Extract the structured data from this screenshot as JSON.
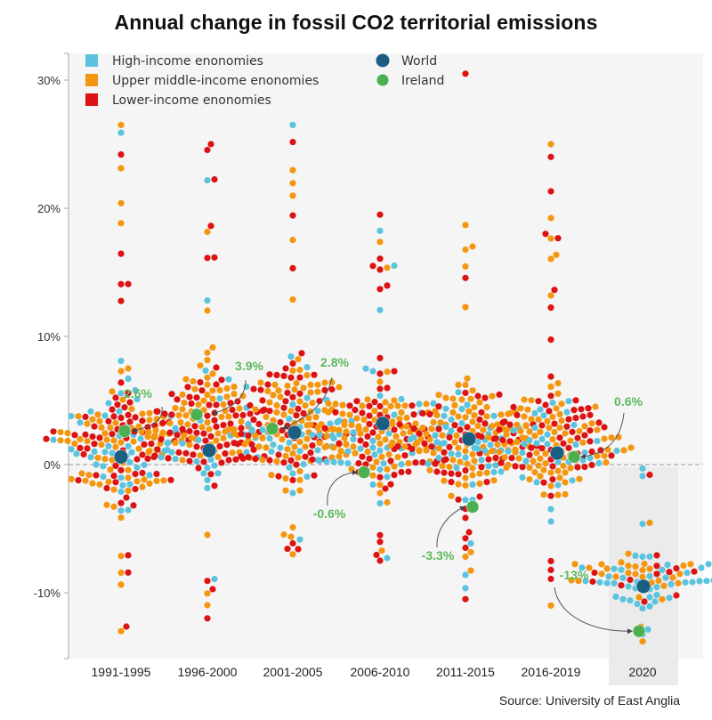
{
  "chart_data": {
    "type": "scatter",
    "subtype": "beeswarm",
    "title": "Annual change in fossil CO2 territorial emissions",
    "source": "Source: University of East Anglia",
    "xlabel": "",
    "ylabel": "",
    "ylim": [
      -15,
      32
    ],
    "yticks": [
      30,
      20,
      10,
      0,
      -10
    ],
    "ytick_labels": [
      "30%",
      "20%",
      "10%",
      "0%",
      "-10%"
    ],
    "reference_line": 0,
    "categories": [
      "1991-1995",
      "1996-2000",
      "2001-2005",
      "2006-2010",
      "2011-2015",
      "2016-2019",
      "2020"
    ],
    "highlighted_category": "2020",
    "legend": {
      "placement": "top-left",
      "entries": [
        {
          "key": "high",
          "label": "High-income enonomies",
          "shape": "square",
          "color": "#5bc3de"
        },
        {
          "key": "upper",
          "label": "Upper middle-income enonomies",
          "shape": "square",
          "color": "#f5960f"
        },
        {
          "key": "lower",
          "label": "Lower-income enonomies",
          "shape": "square",
          "color": "#dd1212"
        },
        {
          "key": "world",
          "label": "World",
          "shape": "circle",
          "color": "#1b5e82"
        },
        {
          "key": "ireland",
          "label": "Ireland",
          "shape": "circle",
          "color": "#4caf50"
        }
      ]
    },
    "series": [
      {
        "name": "World",
        "values": [
          0.6,
          1.1,
          2.5,
          3.2,
          2.0,
          0.9,
          -9.5
        ]
      },
      {
        "name": "Ireland",
        "values": [
          2.6,
          3.9,
          2.8,
          -0.6,
          -3.3,
          0.6,
          -13
        ]
      }
    ],
    "annotations": [
      {
        "category": "1991-1995",
        "text": "2.6%"
      },
      {
        "category": "1996-2000",
        "text": "3.9%"
      },
      {
        "category": "2001-2005",
        "text": "2.8%"
      },
      {
        "category": "2006-2010",
        "text": "-0.6%"
      },
      {
        "category": "2011-2015",
        "text": "-3.3%"
      },
      {
        "category": "2016-2019",
        "text": "0.6%"
      },
      {
        "category": "2020",
        "text": "-13%"
      }
    ],
    "country_distributions": [
      {
        "category": "1991-1995",
        "center": 1.5,
        "spread": 4.5,
        "min": -13,
        "max": 26.5,
        "count": 190,
        "share": {
          "high": 0.2,
          "upper": 0.45,
          "lower": 0.35
        }
      },
      {
        "category": "1996-2000",
        "center": 3.0,
        "spread": 4.2,
        "min": -12,
        "max": 25,
        "count": 185,
        "share": {
          "high": 0.2,
          "upper": 0.45,
          "lower": 0.35
        }
      },
      {
        "category": "2001-2005",
        "center": 3.0,
        "spread": 4.3,
        "min": -7,
        "max": 26.5,
        "count": 190,
        "share": {
          "high": 0.2,
          "upper": 0.42,
          "lower": 0.38
        }
      },
      {
        "category": "2006-2010",
        "center": 2.5,
        "spread": 4.0,
        "min": -7.5,
        "max": 19.5,
        "count": 190,
        "share": {
          "high": 0.25,
          "upper": 0.45,
          "lower": 0.3
        }
      },
      {
        "category": "2011-2015",
        "center": 2.0,
        "spread": 4.0,
        "min": -10.5,
        "max": 30.5,
        "count": 190,
        "share": {
          "high": 0.25,
          "upper": 0.45,
          "lower": 0.3
        }
      },
      {
        "category": "2016-2019",
        "center": 2.0,
        "spread": 3.8,
        "min": -11,
        "max": 25,
        "count": 190,
        "share": {
          "high": 0.25,
          "upper": 0.45,
          "lower": 0.3
        }
      },
      {
        "category": "2020",
        "center": -9.0,
        "spread": 1.9,
        "min": -13.8,
        "max": -0.3,
        "count": 90,
        "share": {
          "high": 0.55,
          "upper": 0.3,
          "lower": 0.15
        }
      }
    ]
  }
}
